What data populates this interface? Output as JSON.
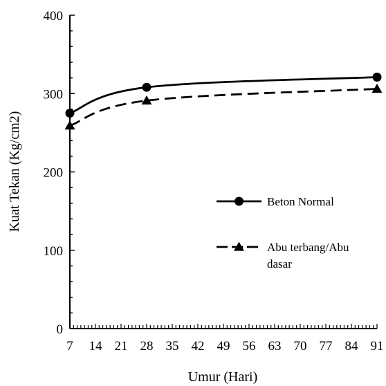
{
  "chart_data": {
    "type": "line",
    "title": "",
    "xlabel": "Umur (Hari)",
    "ylabel": "Kuat Tekan (Kg/cm2)",
    "xlim": [
      7,
      91
    ],
    "ylim": [
      0,
      400
    ],
    "x_ticks": [
      "7",
      "14",
      "21",
      "28",
      "35",
      "42",
      "49",
      "56",
      "63",
      "70",
      "77",
      "84",
      "91"
    ],
    "y_ticks": [
      "0",
      "100",
      "200",
      "300",
      "400"
    ],
    "grid": false,
    "legend_position": "right",
    "series": [
      {
        "name": "Beton Normal",
        "marker": "circle",
        "line_style": "solid",
        "color": "#000000",
        "x": [
          7,
          28,
          91
        ],
        "y": [
          275,
          308,
          321
        ]
      },
      {
        "name": "Abu terbang/Abu dasar",
        "marker": "triangle",
        "line_style": "dashed",
        "color": "#000000",
        "x": [
          7,
          28,
          91
        ],
        "y": [
          259,
          291,
          306
        ]
      }
    ]
  }
}
